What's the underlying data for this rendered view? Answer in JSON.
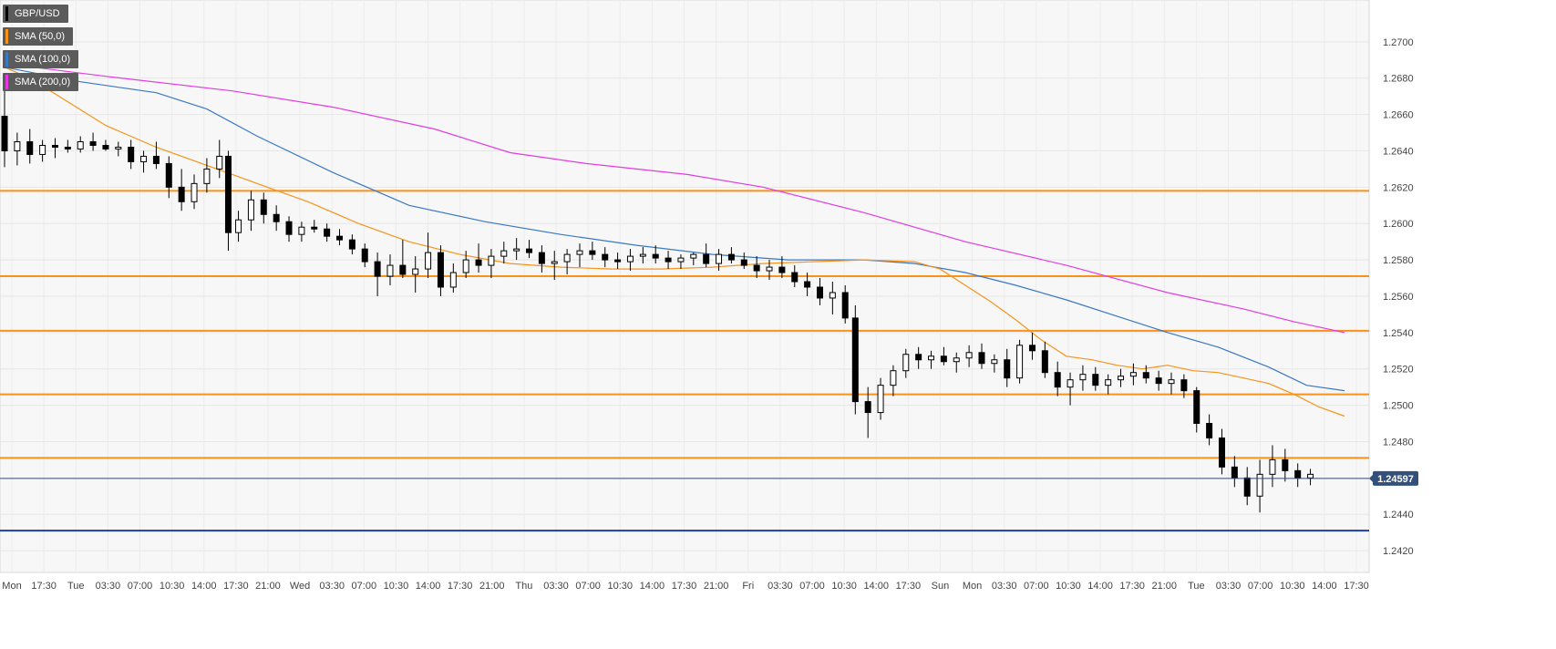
{
  "legend": [
    {
      "label": "GBP/USD",
      "color": "#000000"
    },
    {
      "label": "SMA (50,0)",
      "color": "#f7931a"
    },
    {
      "label": "SMA (100,0)",
      "color": "#3a78c4"
    },
    {
      "label": "SMA (200,0)",
      "color": "#e33be3"
    }
  ],
  "chart_data": {
    "type": "candlestick",
    "symbol": "GBP/USD",
    "price_label": "1.24597",
    "last_price": 1.24597,
    "y_range": [
      1.2408,
      1.2723
    ],
    "y_ticks": [
      "1.2700",
      "1.2680",
      "1.2660",
      "1.2640",
      "1.2620",
      "1.2600",
      "1.2580",
      "1.2560",
      "1.2540",
      "1.2520",
      "1.2500",
      "1.2480",
      "1.2460",
      "1.2440",
      "1.2420"
    ],
    "x_ticks": [
      "Mon",
      "17:30",
      "Tue",
      "03:30",
      "07:00",
      "10:30",
      "14:00",
      "17:30",
      "21:00",
      "Wed",
      "03:30",
      "07:00",
      "10:30",
      "14:00",
      "17:30",
      "21:00",
      "Thu",
      "03:30",
      "07:00",
      "10:30",
      "14:00",
      "17:30",
      "21:00",
      "Fri",
      "03:30",
      "07:00",
      "10:30",
      "14:00",
      "17:30",
      "Sun",
      "Mon",
      "03:30",
      "07:00",
      "10:30",
      "14:00",
      "17:30",
      "21:00",
      "Tue",
      "03:30",
      "07:00",
      "10:30",
      "14:00",
      "17:30"
    ],
    "grid": true,
    "legend_position": "top-left",
    "levels": [
      {
        "value": 1.2618,
        "color": "#f7931a"
      },
      {
        "value": 1.2571,
        "color": "#f7931a"
      },
      {
        "value": 1.2541,
        "color": "#f7931a"
      },
      {
        "value": 1.2506,
        "color": "#f7931a"
      },
      {
        "value": 1.2471,
        "color": "#f7931a"
      },
      {
        "value": 1.2431,
        "color": "#1f3f9f"
      }
    ],
    "colors": {
      "bull": "#ffffff",
      "bear": "#000000",
      "wick": "#000000",
      "last_line": "#33507a",
      "price_tag": "#33507a"
    },
    "sma_50": [
      [
        0,
        1.2686
      ],
      [
        20,
        1.268
      ],
      [
        50,
        1.2667
      ],
      [
        80,
        1.2654
      ],
      [
        120,
        1.2642
      ],
      [
        160,
        1.2632
      ],
      [
        200,
        1.2622
      ],
      [
        240,
        1.2612
      ],
      [
        280,
        1.26
      ],
      [
        320,
        1.259
      ],
      [
        360,
        1.2583
      ],
      [
        400,
        1.2578
      ],
      [
        440,
        1.2576
      ],
      [
        480,
        1.2575
      ],
      [
        520,
        1.2575
      ],
      [
        560,
        1.2576
      ],
      [
        600,
        1.2578
      ],
      [
        640,
        1.2579
      ],
      [
        680,
        1.258
      ],
      [
        720,
        1.2579
      ],
      [
        740,
        1.2575
      ],
      [
        760,
        1.2566
      ],
      [
        780,
        1.2557
      ],
      [
        800,
        1.2547
      ],
      [
        820,
        1.2536
      ],
      [
        840,
        1.2527
      ],
      [
        860,
        1.2525
      ],
      [
        880,
        1.2522
      ],
      [
        900,
        1.252
      ],
      [
        920,
        1.2522
      ],
      [
        940,
        1.2519
      ],
      [
        960,
        1.2518
      ],
      [
        980,
        1.2515
      ],
      [
        1000,
        1.2512
      ],
      [
        1020,
        1.2506
      ],
      [
        1040,
        1.2499
      ],
      [
        1060,
        1.2494
      ]
    ],
    "sma_100": [
      [
        0,
        1.2686
      ],
      [
        60,
        1.2678
      ],
      [
        120,
        1.2672
      ],
      [
        160,
        1.2663
      ],
      [
        200,
        1.2648
      ],
      [
        260,
        1.2628
      ],
      [
        320,
        1.261
      ],
      [
        380,
        1.2601
      ],
      [
        440,
        1.2594
      ],
      [
        500,
        1.2588
      ],
      [
        560,
        1.2583
      ],
      [
        620,
        1.258
      ],
      [
        680,
        1.258
      ],
      [
        720,
        1.2578
      ],
      [
        760,
        1.2573
      ],
      [
        800,
        1.2566
      ],
      [
        840,
        1.2558
      ],
      [
        880,
        1.2549
      ],
      [
        920,
        1.254
      ],
      [
        960,
        1.2532
      ],
      [
        1000,
        1.2521
      ],
      [
        1030,
        1.2511
      ],
      [
        1060,
        1.2508
      ]
    ],
    "sma_200": [
      [
        0,
        1.2688
      ],
      [
        80,
        1.2681
      ],
      [
        180,
        1.2673
      ],
      [
        260,
        1.2664
      ],
      [
        340,
        1.2652
      ],
      [
        400,
        1.2639
      ],
      [
        460,
        1.2633
      ],
      [
        540,
        1.2627
      ],
      [
        600,
        1.262
      ],
      [
        680,
        1.2606
      ],
      [
        760,
        1.259
      ],
      [
        840,
        1.2577
      ],
      [
        920,
        1.2562
      ],
      [
        980,
        1.2553
      ],
      [
        1020,
        1.2546
      ],
      [
        1060,
        1.254
      ]
    ],
    "candles_xmax": 1060,
    "candles": [
      [
        0,
        1.2659,
        1.2674,
        1.2631,
        1.264
      ],
      [
        10,
        1.264,
        1.265,
        1.2632,
        1.2645
      ],
      [
        20,
        1.2645,
        1.2652,
        1.2633,
        1.2638
      ],
      [
        30,
        1.2638,
        1.2646,
        1.2634,
        1.2643
      ],
      [
        40,
        1.2643,
        1.2647,
        1.2636,
        1.2642
      ],
      [
        50,
        1.2642,
        1.2646,
        1.2639,
        1.2641
      ],
      [
        60,
        1.2641,
        1.2648,
        1.2639,
        1.2645
      ],
      [
        70,
        1.2645,
        1.265,
        1.264,
        1.2643
      ],
      [
        80,
        1.2643,
        1.2646,
        1.264,
        1.2641
      ],
      [
        90,
        1.2641,
        1.2645,
        1.2637,
        1.2642
      ],
      [
        100,
        1.2642,
        1.2646,
        1.263,
        1.2634
      ],
      [
        110,
        1.2634,
        1.264,
        1.2628,
        1.2637
      ],
      [
        120,
        1.2637,
        1.2645,
        1.263,
        1.2633
      ],
      [
        130,
        1.2633,
        1.2637,
        1.2614,
        1.262
      ],
      [
        140,
        1.262,
        1.263,
        1.2607,
        1.2612
      ],
      [
        150,
        1.2612,
        1.2627,
        1.2608,
        1.2622
      ],
      [
        160,
        1.2622,
        1.2636,
        1.2617,
        1.263
      ],
      [
        170,
        1.263,
        1.2646,
        1.2625,
        1.2637
      ],
      [
        177,
        1.2637,
        1.264,
        1.2585,
        1.2595
      ],
      [
        185,
        1.2595,
        1.2607,
        1.259,
        1.2602
      ],
      [
        195,
        1.2602,
        1.2618,
        1.2596,
        1.2613
      ],
      [
        205,
        1.2613,
        1.2617,
        1.26,
        1.2605
      ],
      [
        215,
        1.2605,
        1.261,
        1.2596,
        1.2601
      ],
      [
        225,
        1.2601,
        1.2604,
        1.259,
        1.2594
      ],
      [
        235,
        1.2594,
        1.2601,
        1.259,
        1.2598
      ],
      [
        245,
        1.2598,
        1.2602,
        1.2595,
        1.2597
      ],
      [
        255,
        1.2597,
        1.26,
        1.259,
        1.2593
      ],
      [
        265,
        1.2593,
        1.2597,
        1.2588,
        1.2591
      ],
      [
        275,
        1.2591,
        1.2594,
        1.2583,
        1.2586
      ],
      [
        285,
        1.2586,
        1.2589,
        1.2576,
        1.2579
      ],
      [
        295,
        1.2579,
        1.2584,
        1.256,
        1.2571
      ],
      [
        305,
        1.2571,
        1.2583,
        1.2566,
        1.2577
      ],
      [
        315,
        1.2577,
        1.2591,
        1.257,
        1.2572
      ],
      [
        325,
        1.2572,
        1.2582,
        1.2562,
        1.2575
      ],
      [
        335,
        1.2575,
        1.2595,
        1.257,
        1.2584
      ],
      [
        345,
        1.2584,
        1.2588,
        1.256,
        1.2565
      ],
      [
        355,
        1.2565,
        1.2578,
        1.2562,
        1.2573
      ],
      [
        365,
        1.2573,
        1.2585,
        1.257,
        1.258
      ],
      [
        375,
        1.258,
        1.2589,
        1.2573,
        1.2577
      ],
      [
        385,
        1.2577,
        1.2586,
        1.257,
        1.2582
      ],
      [
        395,
        1.2582,
        1.259,
        1.2578,
        1.2585
      ],
      [
        405,
        1.2585,
        1.2592,
        1.258,
        1.2586
      ],
      [
        415,
        1.2586,
        1.2591,
        1.2581,
        1.2584
      ],
      [
        425,
        1.2584,
        1.2588,
        1.2573,
        1.2578
      ],
      [
        435,
        1.2578,
        1.2585,
        1.2569,
        1.2579
      ],
      [
        445,
        1.2579,
        1.2586,
        1.2572,
        1.2583
      ],
      [
        455,
        1.2583,
        1.2589,
        1.2576,
        1.2585
      ],
      [
        465,
        1.2585,
        1.259,
        1.258,
        1.2583
      ],
      [
        475,
        1.2583,
        1.2587,
        1.2576,
        1.258
      ],
      [
        485,
        1.258,
        1.2584,
        1.2575,
        1.2579
      ],
      [
        495,
        1.2579,
        1.2586,
        1.2574,
        1.2582
      ],
      [
        505,
        1.2582,
        1.2587,
        1.2578,
        1.2583
      ],
      [
        515,
        1.2583,
        1.2588,
        1.2578,
        1.2581
      ],
      [
        525,
        1.2581,
        1.2585,
        1.2575,
        1.2579
      ],
      [
        535,
        1.2579,
        1.2583,
        1.2575,
        1.2581
      ],
      [
        545,
        1.2581,
        1.2584,
        1.2577,
        1.2583
      ],
      [
        555,
        1.2583,
        1.2589,
        1.2576,
        1.2578
      ],
      [
        565,
        1.2578,
        1.2586,
        1.2574,
        1.2583
      ],
      [
        575,
        1.2583,
        1.2587,
        1.2578,
        1.258
      ],
      [
        585,
        1.258,
        1.2584,
        1.2575,
        1.2577
      ],
      [
        595,
        1.2577,
        1.2582,
        1.257,
        1.2574
      ],
      [
        605,
        1.2574,
        1.258,
        1.2569,
        1.2576
      ],
      [
        615,
        1.2576,
        1.2582,
        1.257,
        1.2573
      ],
      [
        625,
        1.2573,
        1.2577,
        1.2565,
        1.2568
      ],
      [
        635,
        1.2568,
        1.2573,
        1.256,
        1.2565
      ],
      [
        645,
        1.2565,
        1.257,
        1.2555,
        1.2559
      ],
      [
        655,
        1.2559,
        1.2568,
        1.255,
        1.2562
      ],
      [
        665,
        1.2562,
        1.2566,
        1.2545,
        1.2548
      ],
      [
        673,
        1.2548,
        1.2555,
        1.2495,
        1.2502
      ],
      [
        683,
        1.2502,
        1.251,
        1.2482,
        1.2496
      ],
      [
        693,
        1.2496,
        1.2515,
        1.2492,
        1.2511
      ],
      [
        703,
        1.2511,
        1.2522,
        1.2505,
        1.2519
      ],
      [
        713,
        1.2519,
        1.2531,
        1.2515,
        1.2528
      ],
      [
        723,
        1.2528,
        1.2532,
        1.252,
        1.2525
      ],
      [
        733,
        1.2525,
        1.253,
        1.252,
        1.2527
      ],
      [
        743,
        1.2527,
        1.2532,
        1.2522,
        1.2524
      ],
      [
        753,
        1.2524,
        1.2529,
        1.2518,
        1.2526
      ],
      [
        763,
        1.2526,
        1.2533,
        1.2521,
        1.2529
      ],
      [
        773,
        1.2529,
        1.2534,
        1.252,
        1.2523
      ],
      [
        783,
        1.2523,
        1.2528,
        1.2518,
        1.2525
      ],
      [
        793,
        1.2525,
        1.2531,
        1.251,
        1.2515
      ],
      [
        803,
        1.2515,
        1.2536,
        1.2512,
        1.2533
      ],
      [
        813,
        1.2533,
        1.254,
        1.2525,
        1.253
      ],
      [
        823,
        1.253,
        1.2535,
        1.2515,
        1.2518
      ],
      [
        833,
        1.2518,
        1.2524,
        1.2505,
        1.251
      ],
      [
        843,
        1.251,
        1.2518,
        1.25,
        1.2514
      ],
      [
        853,
        1.2514,
        1.2522,
        1.2508,
        1.2517
      ],
      [
        863,
        1.2517,
        1.2521,
        1.2508,
        1.2511
      ],
      [
        873,
        1.2511,
        1.2517,
        1.2506,
        1.2514
      ],
      [
        883,
        1.2514,
        1.252,
        1.251,
        1.2516
      ],
      [
        893,
        1.2516,
        1.2523,
        1.2511,
        1.2518
      ],
      [
        903,
        1.2518,
        1.2522,
        1.2512,
        1.2515
      ],
      [
        913,
        1.2515,
        1.2519,
        1.2508,
        1.2512
      ],
      [
        923,
        1.2512,
        1.2518,
        1.2506,
        1.2514
      ],
      [
        933,
        1.2514,
        1.2517,
        1.2504,
        1.2508
      ],
      [
        943,
        1.2508,
        1.251,
        1.2485,
        1.249
      ],
      [
        953,
        1.249,
        1.2495,
        1.2478,
        1.2482
      ],
      [
        963,
        1.2482,
        1.2487,
        1.2462,
        1.2466
      ],
      [
        973,
        1.2466,
        1.2472,
        1.2455,
        1.246
      ],
      [
        983,
        1.246,
        1.2466,
        1.2445,
        1.245
      ],
      [
        993,
        1.245,
        1.247,
        1.2441,
        1.2462
      ],
      [
        1003,
        1.2462,
        1.2478,
        1.2455,
        1.247
      ],
      [
        1013,
        1.247,
        1.2476,
        1.2458,
        1.2464
      ],
      [
        1023,
        1.2464,
        1.2468,
        1.2455,
        1.246
      ],
      [
        1033,
        1.246,
        1.2465,
        1.2456,
        1.2462
      ]
    ]
  }
}
